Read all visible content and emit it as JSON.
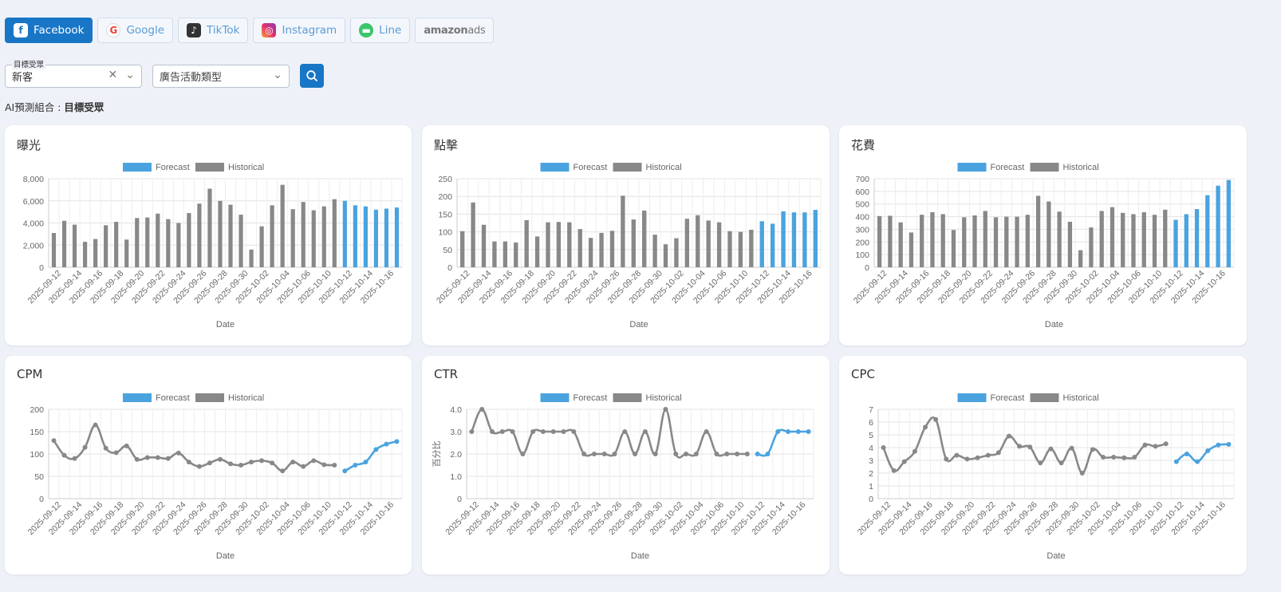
{
  "tabs": [
    {
      "label": "Facebook",
      "icon": "facebook-icon",
      "active": true
    },
    {
      "label": "Google",
      "icon": "google-icon"
    },
    {
      "label": "TikTok",
      "icon": "tiktok-icon"
    },
    {
      "label": "Instagram",
      "icon": "instagram-icon"
    },
    {
      "label": "Line",
      "icon": "line-icon"
    },
    {
      "label": "amazon",
      "label2": "ads",
      "icon": "amazon-ads-logo"
    }
  ],
  "filters": {
    "audience_label": "目標受眾",
    "audience_value": "新客",
    "campaign_placeholder": "廣告活動類型"
  },
  "ai_line": {
    "prefix": "AI預測組合 : ",
    "value": "目標受眾"
  },
  "colors": {
    "forecast": "#4aa3df",
    "historical": "#888888"
  },
  "legend": {
    "forecast": "Forecast",
    "historical": "Historical"
  },
  "chart_data": [
    {
      "id": "impressions",
      "title": "曝光",
      "type": "bar",
      "xlabel": "Date",
      "ylabel": "",
      "ylim": [
        0,
        8000
      ],
      "yticks": [
        0,
        2000,
        4000,
        6000,
        8000
      ],
      "ytick_labels": [
        "0",
        "2,000",
        "4,000",
        "6,000",
        "8,000"
      ],
      "xtick_labels": [
        "2025-09-12",
        "2025-09-14",
        "2025-09-16",
        "2025-09-18",
        "2025-09-20",
        "2025-09-22",
        "2025-09-24",
        "2025-09-26",
        "2025-09-28",
        "2025-09-30",
        "2025-10-02",
        "2025-10-04",
        "2025-10-06",
        "2025-10-10",
        "2025-10-12",
        "2025-10-14",
        "2025-10-16"
      ],
      "historical": [
        3100,
        4200,
        3850,
        2300,
        2550,
        3800,
        4100,
        2500,
        4450,
        4500,
        4850,
        4350,
        4000,
        4900,
        5750,
        7100,
        6000,
        5650,
        4750,
        1600,
        3700,
        5600,
        7450,
        5250,
        5900,
        5150,
        5500,
        6150
      ],
      "forecast": [
        6000,
        5600,
        5500,
        5200,
        5300,
        5400
      ]
    },
    {
      "id": "clicks",
      "title": "點擊",
      "type": "bar",
      "xlabel": "Date",
      "ylabel": "",
      "ylim": [
        0,
        250
      ],
      "yticks": [
        0,
        50,
        100,
        150,
        200,
        250
      ],
      "ytick_labels": [
        "0",
        "50",
        "100",
        "150",
        "200",
        "250"
      ],
      "xtick_labels": [
        "2025-09-12",
        "2025-09-14",
        "2025-09-16",
        "2025-09-18",
        "2025-09-20",
        "2025-09-22",
        "2025-09-24",
        "2025-09-26",
        "2025-09-28",
        "2025-09-30",
        "2025-10-02",
        "2025-10-04",
        "2025-10-06",
        "2025-10-10",
        "2025-10-12",
        "2025-10-14",
        "2025-10-16"
      ],
      "historical": [
        102,
        183,
        120,
        73,
        73,
        70,
        133,
        87,
        127,
        128,
        127,
        108,
        83,
        97,
        103,
        202,
        135,
        160,
        92,
        65,
        82,
        137,
        147,
        132,
        127,
        102,
        100,
        106
      ],
      "forecast": [
        130,
        123,
        158,
        155,
        155,
        162
      ]
    },
    {
      "id": "spend",
      "title": "花費",
      "type": "bar",
      "xlabel": "Date",
      "ylabel": "",
      "ylim": [
        0,
        700
      ],
      "yticks": [
        0,
        100,
        200,
        300,
        400,
        500,
        600,
        700
      ],
      "ytick_labels": [
        "0",
        "100",
        "200",
        "300",
        "400",
        "500",
        "600",
        "700"
      ],
      "xtick_labels": [
        "2025-09-12",
        "2025-09-14",
        "2025-09-16",
        "2025-09-18",
        "2025-09-20",
        "2025-09-22",
        "2025-09-24",
        "2025-09-26",
        "2025-09-28",
        "2025-09-30",
        "2025-10-02",
        "2025-10-04",
        "2025-10-06",
        "2025-10-10",
        "2025-10-12",
        "2025-10-14",
        "2025-10-16"
      ],
      "historical": [
        405,
        407,
        355,
        275,
        415,
        435,
        420,
        295,
        395,
        410,
        445,
        395,
        400,
        400,
        415,
        565,
        520,
        440,
        360,
        135,
        315,
        445,
        475,
        430,
        420,
        435,
        415,
        455
      ],
      "forecast": [
        375,
        420,
        460,
        570,
        645,
        690
      ]
    },
    {
      "id": "cpm",
      "title": "CPM",
      "type": "line",
      "xlabel": "Date",
      "ylabel": "",
      "ylim": [
        0,
        200
      ],
      "yticks": [
        0,
        50,
        100,
        150,
        200
      ],
      "ytick_labels": [
        "0",
        "50",
        "100",
        "150",
        "200"
      ],
      "xtick_labels": [
        "2025-09-12",
        "2025-09-14",
        "2025-09-16",
        "2025-09-18",
        "2025-09-20",
        "2025-09-22",
        "2025-09-24",
        "2025-09-26",
        "2025-09-28",
        "2025-09-30",
        "2025-10-02",
        "2025-10-04",
        "2025-10-06",
        "2025-10-10",
        "2025-10-12",
        "2025-10-14",
        "2025-10-16"
      ],
      "historical": [
        130,
        97,
        90,
        115,
        165,
        113,
        103,
        118,
        88,
        92,
        92,
        90,
        102,
        82,
        72,
        80,
        88,
        78,
        75,
        82,
        85,
        80,
        62,
        82,
        72,
        85,
        76,
        75
      ],
      "forecast": [
        62,
        75,
        82,
        110,
        122,
        128
      ]
    },
    {
      "id": "ctr",
      "title": "CTR",
      "type": "line",
      "xlabel": "Date",
      "ylabel": "百分比",
      "ylim": [
        0,
        4.0
      ],
      "yticks": [
        0,
        1.0,
        2.0,
        3.0,
        4.0
      ],
      "ytick_labels": [
        "0",
        "1.0",
        "2.0",
        "3.0",
        "4.0"
      ],
      "xtick_labels": [
        "2025-09-12",
        "2025-09-14",
        "2025-09-16",
        "2025-09-18",
        "2025-09-20",
        "2025-09-22",
        "2025-09-24",
        "2025-09-26",
        "2025-09-28",
        "2025-09-30",
        "2025-10-02",
        "2025-10-04",
        "2025-10-06",
        "2025-10-10",
        "2025-10-12",
        "2025-10-14",
        "2025-10-16"
      ],
      "historical": [
        3,
        4,
        3,
        3,
        3,
        2,
        3,
        3,
        3,
        3,
        3,
        2,
        2,
        2,
        2,
        3,
        2,
        3,
        2,
        4,
        2,
        2,
        2,
        3,
        2,
        2,
        2,
        2
      ],
      "forecast": [
        2,
        2,
        3,
        3,
        3,
        3
      ]
    },
    {
      "id": "cpc",
      "title": "CPC",
      "type": "line",
      "xlabel": "Date",
      "ylabel": "",
      "ylim": [
        0,
        7
      ],
      "yticks": [
        0,
        1,
        2,
        3,
        4,
        5,
        6,
        7
      ],
      "ytick_labels": [
        "0",
        "1",
        "2",
        "3",
        "4",
        "5",
        "6",
        "7"
      ],
      "xtick_labels": [
        "2025-09-12",
        "2025-09-14",
        "2025-09-16",
        "2025-09-18",
        "2025-09-20",
        "2025-09-22",
        "2025-09-24",
        "2025-09-26",
        "2025-09-28",
        "2025-09-30",
        "2025-10-02",
        "2025-10-04",
        "2025-10-06",
        "2025-10-10",
        "2025-10-12",
        "2025-10-14",
        "2025-10-16"
      ],
      "historical": [
        4.0,
        2.2,
        2.9,
        3.7,
        5.6,
        6.2,
        3.1,
        3.4,
        3.1,
        3.2,
        3.4,
        3.6,
        4.9,
        4.1,
        4.05,
        2.8,
        3.9,
        2.8,
        3.95,
        2.0,
        3.85,
        3.25,
        3.25,
        3.2,
        3.25,
        4.2,
        4.1,
        4.3
      ],
      "forecast": [
        2.9,
        3.5,
        2.9,
        3.75,
        4.2,
        4.25
      ]
    }
  ]
}
